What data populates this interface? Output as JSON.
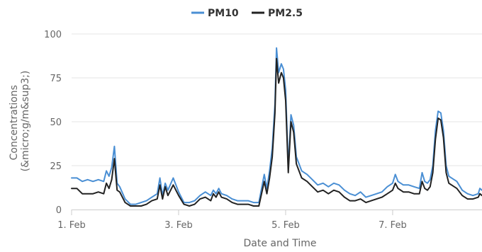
{
  "chart_data": {
    "type": "line",
    "xlabel": "Date and Time",
    "ylabel": "Concentrations (&micro;g/m&sup3;)",
    "xlim": [
      1.0,
      8.67
    ],
    "ylim": [
      0,
      100
    ],
    "yticks": [
      0,
      25,
      50,
      75,
      100
    ],
    "xticks": [
      {
        "value": 1,
        "label": "1. Feb"
      },
      {
        "value": 3,
        "label": "3. Feb"
      },
      {
        "value": 5,
        "label": "5. Feb"
      },
      {
        "value": 7,
        "label": "7. Feb"
      }
    ],
    "grid": true,
    "legend_position": "top-center",
    "series": [
      {
        "name": "PM10",
        "color": "#4a8fd4",
        "points": [
          [
            1.0,
            18
          ],
          [
            1.1,
            18
          ],
          [
            1.2,
            16
          ],
          [
            1.3,
            17
          ],
          [
            1.4,
            16
          ],
          [
            1.5,
            17
          ],
          [
            1.6,
            16
          ],
          [
            1.65,
            22
          ],
          [
            1.7,
            19
          ],
          [
            1.75,
            24
          ],
          [
            1.8,
            36
          ],
          [
            1.85,
            15
          ],
          [
            1.9,
            13
          ],
          [
            2.0,
            6
          ],
          [
            2.1,
            3
          ],
          [
            2.2,
            3
          ],
          [
            2.3,
            4
          ],
          [
            2.4,
            5
          ],
          [
            2.5,
            7
          ],
          [
            2.6,
            9
          ],
          [
            2.65,
            18
          ],
          [
            2.7,
            8
          ],
          [
            2.75,
            15
          ],
          [
            2.8,
            11
          ],
          [
            2.9,
            18
          ],
          [
            3.0,
            10
          ],
          [
            3.1,
            4
          ],
          [
            3.2,
            4
          ],
          [
            3.3,
            5
          ],
          [
            3.4,
            8
          ],
          [
            3.5,
            10
          ],
          [
            3.6,
            8
          ],
          [
            3.65,
            11
          ],
          [
            3.7,
            9
          ],
          [
            3.75,
            12
          ],
          [
            3.8,
            9
          ],
          [
            3.9,
            8
          ],
          [
            4.0,
            6
          ],
          [
            4.1,
            5
          ],
          [
            4.2,
            5
          ],
          [
            4.3,
            5
          ],
          [
            4.4,
            4
          ],
          [
            4.5,
            4
          ],
          [
            4.6,
            20
          ],
          [
            4.65,
            12
          ],
          [
            4.7,
            22
          ],
          [
            4.75,
            35
          ],
          [
            4.8,
            60
          ],
          [
            4.83,
            92
          ],
          [
            4.87,
            78
          ],
          [
            4.92,
            83
          ],
          [
            4.96,
            80
          ],
          [
            5.0,
            68
          ],
          [
            5.05,
            24
          ],
          [
            5.1,
            54
          ],
          [
            5.15,
            48
          ],
          [
            5.2,
            30
          ],
          [
            5.3,
            22
          ],
          [
            5.4,
            20
          ],
          [
            5.5,
            17
          ],
          [
            5.6,
            14
          ],
          [
            5.7,
            15
          ],
          [
            5.8,
            13
          ],
          [
            5.9,
            15
          ],
          [
            6.0,
            14
          ],
          [
            6.1,
            11
          ],
          [
            6.2,
            9
          ],
          [
            6.3,
            8
          ],
          [
            6.4,
            10
          ],
          [
            6.5,
            7
          ],
          [
            6.6,
            8
          ],
          [
            6.7,
            9
          ],
          [
            6.8,
            10
          ],
          [
            6.9,
            13
          ],
          [
            7.0,
            15
          ],
          [
            7.05,
            20
          ],
          [
            7.1,
            16
          ],
          [
            7.2,
            14
          ],
          [
            7.3,
            14
          ],
          [
            7.4,
            13
          ],
          [
            7.5,
            12
          ],
          [
            7.55,
            21
          ],
          [
            7.6,
            16
          ],
          [
            7.65,
            15
          ],
          [
            7.7,
            17
          ],
          [
            7.75,
            25
          ],
          [
            7.8,
            45
          ],
          [
            7.85,
            56
          ],
          [
            7.9,
            55
          ],
          [
            7.95,
            45
          ],
          [
            8.0,
            25
          ],
          [
            8.05,
            19
          ],
          [
            8.1,
            18
          ],
          [
            8.2,
            16
          ],
          [
            8.3,
            11
          ],
          [
            8.4,
            9
          ],
          [
            8.5,
            8
          ],
          [
            8.6,
            9
          ],
          [
            8.63,
            12
          ],
          [
            8.67,
            11
          ]
        ]
      },
      {
        "name": "PM2.5",
        "color": "#222222",
        "points": [
          [
            1.0,
            12
          ],
          [
            1.1,
            12
          ],
          [
            1.2,
            9
          ],
          [
            1.3,
            9
          ],
          [
            1.4,
            9
          ],
          [
            1.5,
            10
          ],
          [
            1.6,
            9
          ],
          [
            1.65,
            15
          ],
          [
            1.7,
            12
          ],
          [
            1.75,
            17
          ],
          [
            1.8,
            29
          ],
          [
            1.85,
            11
          ],
          [
            1.9,
            10
          ],
          [
            2.0,
            4
          ],
          [
            2.1,
            2
          ],
          [
            2.2,
            2
          ],
          [
            2.3,
            2
          ],
          [
            2.4,
            3
          ],
          [
            2.5,
            5
          ],
          [
            2.6,
            6
          ],
          [
            2.65,
            14
          ],
          [
            2.7,
            6
          ],
          [
            2.75,
            13
          ],
          [
            2.8,
            8
          ],
          [
            2.9,
            14
          ],
          [
            3.0,
            8
          ],
          [
            3.1,
            3
          ],
          [
            3.2,
            2
          ],
          [
            3.3,
            3
          ],
          [
            3.4,
            6
          ],
          [
            3.5,
            7
          ],
          [
            3.6,
            5
          ],
          [
            3.65,
            9
          ],
          [
            3.7,
            7
          ],
          [
            3.75,
            10
          ],
          [
            3.8,
            7
          ],
          [
            3.9,
            6
          ],
          [
            4.0,
            4
          ],
          [
            4.1,
            3
          ],
          [
            4.2,
            3
          ],
          [
            4.3,
            3
          ],
          [
            4.4,
            2
          ],
          [
            4.5,
            2
          ],
          [
            4.6,
            16
          ],
          [
            4.65,
            9
          ],
          [
            4.7,
            18
          ],
          [
            4.75,
            30
          ],
          [
            4.8,
            55
          ],
          [
            4.83,
            86
          ],
          [
            4.87,
            72
          ],
          [
            4.92,
            78
          ],
          [
            4.96,
            75
          ],
          [
            5.0,
            62
          ],
          [
            5.05,
            21
          ],
          [
            5.1,
            50
          ],
          [
            5.15,
            44
          ],
          [
            5.2,
            26
          ],
          [
            5.3,
            18
          ],
          [
            5.4,
            16
          ],
          [
            5.5,
            13
          ],
          [
            5.6,
            10
          ],
          [
            5.7,
            11
          ],
          [
            5.8,
            9
          ],
          [
            5.9,
            11
          ],
          [
            6.0,
            10
          ],
          [
            6.1,
            7
          ],
          [
            6.2,
            5
          ],
          [
            6.3,
            5
          ],
          [
            6.4,
            6
          ],
          [
            6.5,
            4
          ],
          [
            6.6,
            5
          ],
          [
            6.7,
            6
          ],
          [
            6.8,
            7
          ],
          [
            6.9,
            9
          ],
          [
            7.0,
            11
          ],
          [
            7.05,
            15
          ],
          [
            7.1,
            12
          ],
          [
            7.2,
            10
          ],
          [
            7.3,
            10
          ],
          [
            7.4,
            9
          ],
          [
            7.5,
            9
          ],
          [
            7.55,
            16
          ],
          [
            7.6,
            12
          ],
          [
            7.65,
            11
          ],
          [
            7.7,
            13
          ],
          [
            7.75,
            21
          ],
          [
            7.8,
            40
          ],
          [
            7.85,
            52
          ],
          [
            7.9,
            51
          ],
          [
            7.95,
            41
          ],
          [
            8.0,
            21
          ],
          [
            8.05,
            15
          ],
          [
            8.1,
            14
          ],
          [
            8.2,
            12
          ],
          [
            8.3,
            8
          ],
          [
            8.4,
            6
          ],
          [
            8.5,
            6
          ],
          [
            8.6,
            7
          ],
          [
            8.63,
            9
          ],
          [
            8.67,
            8
          ]
        ]
      }
    ]
  }
}
